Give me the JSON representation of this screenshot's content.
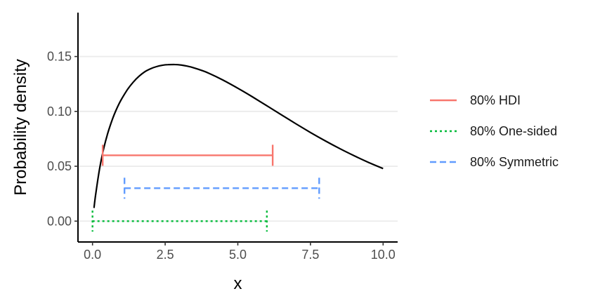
{
  "chart_data": {
    "type": "line",
    "title": "",
    "xlabel": "x",
    "ylabel": "Probability density",
    "xlim": [
      -0.5,
      10.5
    ],
    "ylim": [
      -0.019,
      0.19
    ],
    "xticks": [
      {
        "value": 0,
        "label": "0.0"
      },
      {
        "value": 2.5,
        "label": "2.5"
      },
      {
        "value": 5,
        "label": "5.0"
      },
      {
        "value": 7.5,
        "label": "7.5"
      },
      {
        "value": 10,
        "label": "10.0"
      }
    ],
    "yticks": [
      {
        "value": 0,
        "label": "0.00"
      },
      {
        "value": 0.05,
        "label": "0.05"
      },
      {
        "value": 0.1,
        "label": "0.10"
      },
      {
        "value": 0.15,
        "label": "0.15"
      }
    ],
    "grid": "horizontal major",
    "legend_position": "right",
    "density": {
      "x": [
        0.05,
        0.1,
        0.2,
        0.3,
        0.4,
        0.5,
        0.6,
        0.7,
        0.8,
        0.9,
        1.0,
        1.2,
        1.4,
        1.6,
        1.8,
        2.0,
        2.2,
        2.4,
        2.6,
        2.8,
        3.0,
        3.25,
        3.5,
        3.75,
        4.0,
        4.5,
        5.0,
        5.5,
        6.0,
        6.5,
        7.0,
        7.5,
        8.0,
        8.5,
        9.0,
        9.5,
        10.0
      ],
      "y": [
        0.012,
        0.0226,
        0.0409,
        0.0557,
        0.0678,
        0.0779,
        0.0864,
        0.0939,
        0.1005,
        0.1062,
        0.1112,
        0.1198,
        0.1266,
        0.132,
        0.1361,
        0.1389,
        0.1408,
        0.142,
        0.1426,
        0.1427,
        0.1424,
        0.1413,
        0.1396,
        0.1374,
        0.1348,
        0.1284,
        0.1211,
        0.1133,
        0.1051,
        0.0969,
        0.0887,
        0.0808,
        0.0733,
        0.0662,
        0.0596,
        0.0535,
        0.0479
      ]
    },
    "series": [
      {
        "name": "80% HDI",
        "color": "#F8766D",
        "dash": "solid",
        "y": 0.06,
        "x_start": 0.35,
        "x_end": 6.2
      },
      {
        "name": "80% One-sided",
        "color": "#00BA38",
        "dash": "dotted",
        "y": 0.0,
        "x_start": 0.0,
        "x_end": 6.0
      },
      {
        "name": "80% Symmetric",
        "color": "#619CFF",
        "dash": "dashed",
        "y": 0.03,
        "x_start": 1.1,
        "x_end": 7.8
      }
    ]
  }
}
